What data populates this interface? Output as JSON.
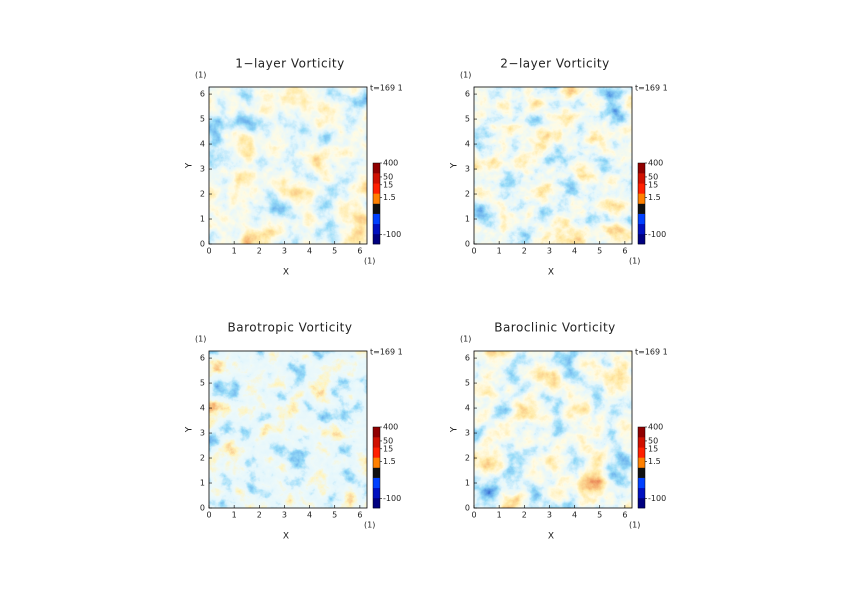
{
  "chart_data": [
    {
      "type": "heatmap",
      "title": "1−layer Vorticity",
      "xlabel": "X",
      "ylabel": "Y",
      "xunit": "(1)",
      "yunit": "(1)",
      "annotation": "t=169 1",
      "xlim": [
        0,
        6.2832
      ],
      "ylim": [
        0,
        6.2832
      ],
      "xticks": [
        0,
        1,
        2,
        3,
        4,
        5,
        6
      ],
      "yticks": [
        0,
        1,
        2,
        3,
        4,
        5,
        6
      ],
      "colorbar": {
        "lim": [
          -400,
          400
        ],
        "ticks": [
          400,
          50,
          15,
          1.5,
          -100
        ],
        "colors": [
          "#000080",
          "#0010c0",
          "#0040ff",
          "#101010",
          "#ff8000",
          "#ff2000",
          "#d01000",
          "#900000"
        ]
      }
    },
    {
      "type": "heatmap",
      "title": "2−layer Vorticity",
      "xlabel": "X",
      "ylabel": "Y",
      "xunit": "(1)",
      "yunit": "(1)",
      "annotation": "t=169 1",
      "xlim": [
        0,
        6.2832
      ],
      "ylim": [
        0,
        6.2832
      ],
      "xticks": [
        0,
        1,
        2,
        3,
        4,
        5,
        6
      ],
      "yticks": [
        0,
        1,
        2,
        3,
        4,
        5,
        6
      ],
      "colorbar": {
        "lim": [
          -400,
          400
        ],
        "ticks": [
          400,
          50,
          15,
          1.5,
          -100
        ],
        "colors": [
          "#000080",
          "#0010c0",
          "#0040ff",
          "#101010",
          "#ff8000",
          "#ff2000",
          "#d01000",
          "#900000"
        ]
      }
    },
    {
      "type": "heatmap",
      "title": "Barotropic Vorticity",
      "xlabel": "X",
      "ylabel": "Y",
      "xunit": "(1)",
      "yunit": "(1)",
      "annotation": "t=169 1",
      "xlim": [
        0,
        6.2832
      ],
      "ylim": [
        0,
        6.2832
      ],
      "xticks": [
        0,
        1,
        2,
        3,
        4,
        5,
        6
      ],
      "yticks": [
        0,
        1,
        2,
        3,
        4,
        5,
        6
      ],
      "colorbar": {
        "lim": [
          -400,
          400
        ],
        "ticks": [
          400,
          50,
          15,
          1.5,
          -100
        ],
        "colors": [
          "#000080",
          "#0010c0",
          "#0040ff",
          "#101010",
          "#ff8000",
          "#ff2000",
          "#d01000",
          "#900000"
        ]
      }
    },
    {
      "type": "heatmap",
      "title": "Baroclinic Vorticity",
      "xlabel": "X",
      "ylabel": "Y",
      "xunit": "(1)",
      "yunit": "(1)",
      "annotation": "t=169 1",
      "xlim": [
        0,
        6.2832
      ],
      "ylim": [
        0,
        6.2832
      ],
      "xticks": [
        0,
        1,
        2,
        3,
        4,
        5,
        6
      ],
      "yticks": [
        0,
        1,
        2,
        3,
        4,
        5,
        6
      ],
      "colorbar": {
        "lim": [
          -400,
          400
        ],
        "ticks": [
          400,
          50,
          15,
          1.5,
          -100
        ],
        "colors": [
          "#000080",
          "#0010c0",
          "#0040ff",
          "#101010",
          "#ff8000",
          "#ff2000",
          "#d01000",
          "#900000"
        ]
      }
    }
  ]
}
